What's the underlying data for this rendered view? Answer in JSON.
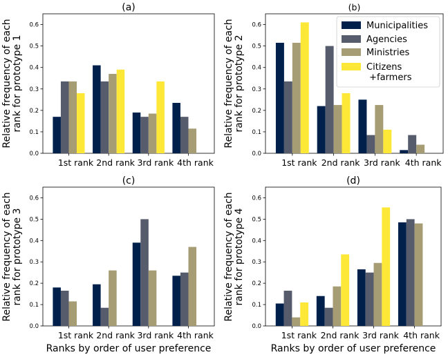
{
  "colors": {
    "Municipalities": "#00204c",
    "Agencies": "#575c6d",
    "Ministries": "#a69d75",
    "Citizens": "#fde737"
  },
  "legend": [
    {
      "key": "Municipalities",
      "label_lines": [
        "Municipalities"
      ]
    },
    {
      "key": "Agencies",
      "label_lines": [
        "Agencies"
      ]
    },
    {
      "key": "Ministries",
      "label_lines": [
        "Ministries"
      ]
    },
    {
      "key": "Citizens",
      "label_lines": [
        "Citizens",
        " +farmers"
      ]
    }
  ],
  "chart_data": [
    {
      "type": "bar",
      "title": "(a)",
      "ylabel_lines": [
        "Relative frequency of each",
        "rank for prototype 1"
      ],
      "xlabel": "",
      "categories": [
        "1st rank",
        "2nd rank",
        "3rd rank",
        "4th rank"
      ],
      "ylim": [
        0,
        0.65
      ],
      "yticks": [
        "0.0",
        "0.1",
        "0.2",
        "0.3",
        "0.4",
        "0.5",
        "0.6"
      ],
      "series": [
        {
          "name": "Municipalities",
          "values": [
            0.17,
            0.41,
            0.19,
            0.235
          ]
        },
        {
          "name": "Agencies",
          "values": [
            0.335,
            0.335,
            0.17,
            0.17
          ]
        },
        {
          "name": "Ministries",
          "values": [
            0.335,
            0.37,
            0.185,
            0.115
          ]
        },
        {
          "name": "Citizens +farmers",
          "values": [
            0.28,
            0.39,
            0.335,
            0
          ]
        }
      ]
    },
    {
      "type": "bar",
      "title": "(b)",
      "ylabel_lines": [
        "Relative frequency of each",
        "rank for prototype 2"
      ],
      "xlabel": "",
      "categories": [
        "1st rank",
        "2nd rank",
        "3rd rank",
        "4th rank"
      ],
      "ylim": [
        0,
        0.65
      ],
      "yticks": [
        "0.0",
        "0.1",
        "0.2",
        "0.3",
        "0.4",
        "0.5",
        "0.6"
      ],
      "legend_position": "top-right",
      "series": [
        {
          "name": "Municipalities",
          "values": [
            0.515,
            0.22,
            0.25,
            0.015
          ]
        },
        {
          "name": "Agencies",
          "values": [
            0.335,
            0.5,
            0.085,
            0.085
          ]
        },
        {
          "name": "Ministries",
          "values": [
            0.515,
            0.225,
            0.225,
            0.04
          ]
        },
        {
          "name": "Citizens +farmers",
          "values": [
            0.61,
            0.28,
            0.11,
            0
          ]
        }
      ]
    },
    {
      "type": "bar",
      "title": "(c)",
      "ylabel_lines": [
        "Relative frequency of each",
        "rank for prototype 3"
      ],
      "xlabel": "Ranks by order of user preference",
      "categories": [
        "1st rank",
        "2nd rank",
        "3rd rank",
        "4th rank"
      ],
      "ylim": [
        0,
        0.65
      ],
      "yticks": [
        "0.0",
        "0.1",
        "0.2",
        "0.3",
        "0.4",
        "0.5",
        "0.6"
      ],
      "series": [
        {
          "name": "Municipalities",
          "values": [
            0.18,
            0.195,
            0.39,
            0.235
          ]
        },
        {
          "name": "Agencies",
          "values": [
            0.165,
            0.085,
            0.5,
            0.25
          ]
        },
        {
          "name": "Ministries",
          "values": [
            0.115,
            0.26,
            0.26,
            0.37
          ]
        },
        {
          "name": "Citizens +farmers",
          "values": [
            0,
            0,
            0,
            0
          ]
        }
      ]
    },
    {
      "type": "bar",
      "title": "(d)",
      "ylabel_lines": [
        "Relative frequency of each",
        "rank for prototype 4"
      ],
      "xlabel": "Ranks by order of user preference",
      "categories": [
        "1st rank",
        "2nd rank",
        "3rd rank",
        "4th rank"
      ],
      "ylim": [
        0,
        0.65
      ],
      "yticks": [
        "0.0",
        "0.1",
        "0.2",
        "0.3",
        "0.4",
        "0.5",
        "0.6"
      ],
      "series": [
        {
          "name": "Municipalities",
          "values": [
            0.105,
            0.14,
            0.265,
            0.485
          ]
        },
        {
          "name": "Agencies",
          "values": [
            0.165,
            0.085,
            0.25,
            0.5
          ]
        },
        {
          "name": "Ministries",
          "values": [
            0.04,
            0.185,
            0.295,
            0.48
          ]
        },
        {
          "name": "Citizens +farmers",
          "values": [
            0.11,
            0.335,
            0.555,
            0
          ]
        }
      ]
    }
  ]
}
